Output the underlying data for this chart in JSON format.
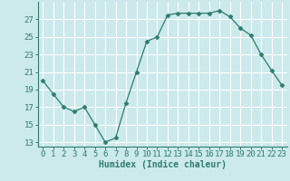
{
  "x": [
    0,
    1,
    2,
    3,
    4,
    5,
    6,
    7,
    8,
    9,
    10,
    11,
    12,
    13,
    14,
    15,
    16,
    17,
    18,
    19,
    20,
    21,
    22,
    23
  ],
  "y": [
    20.0,
    18.5,
    17.0,
    16.5,
    17.0,
    15.0,
    13.0,
    13.5,
    17.5,
    21.0,
    24.5,
    25.0,
    27.5,
    27.7,
    27.7,
    27.7,
    27.7,
    28.0,
    27.3,
    26.0,
    25.2,
    23.0,
    21.2,
    19.5
  ],
  "line_color": "#2e7d6e",
  "marker": "D",
  "marker_size": 2.5,
  "bg_color": "#cce9ec",
  "grid_color": "#ffffff",
  "xlabel": "Humidex (Indice chaleur)",
  "xlim": [
    -0.5,
    23.5
  ],
  "ylim": [
    12.5,
    29.0
  ],
  "yticks": [
    13,
    15,
    17,
    19,
    21,
    23,
    25,
    27
  ],
  "xticks": [
    0,
    1,
    2,
    3,
    4,
    5,
    6,
    7,
    8,
    9,
    10,
    11,
    12,
    13,
    14,
    15,
    16,
    17,
    18,
    19,
    20,
    21,
    22,
    23
  ],
  "xlabel_fontsize": 7,
  "tick_fontsize": 6.5,
  "spine_color": "#2e7d6e",
  "tick_color": "#2e7d6e"
}
